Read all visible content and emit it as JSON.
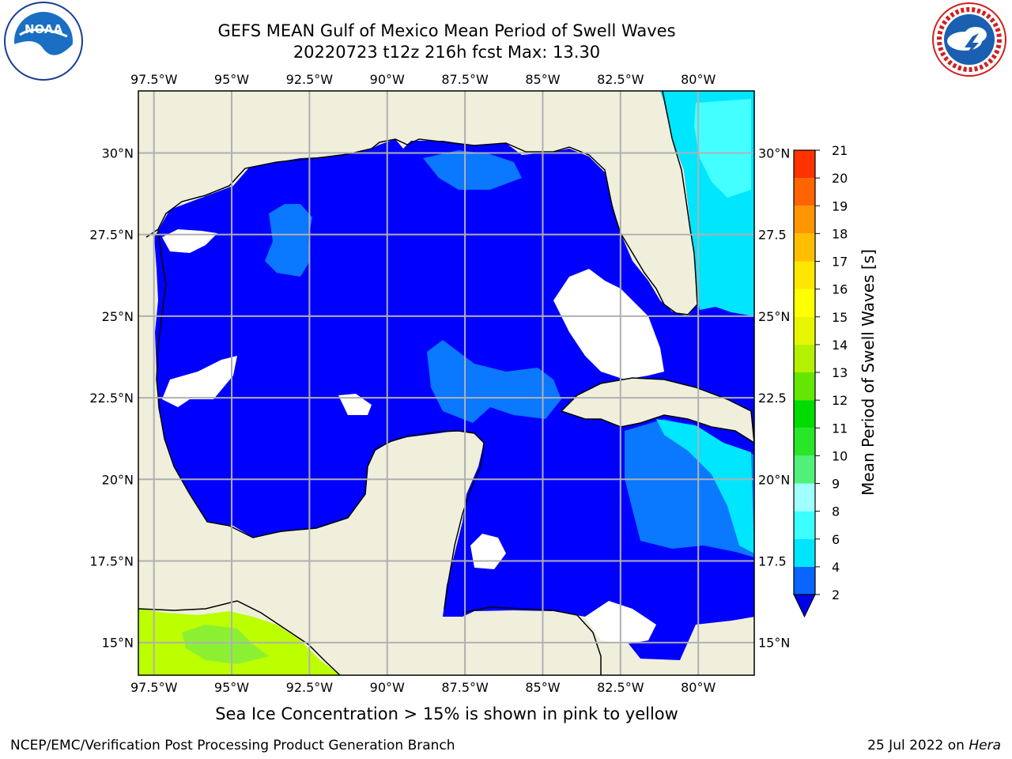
{
  "title": {
    "line1": "GEFS MEAN Gulf of Mexico Mean Period of Swell Waves",
    "line2": "20220723 t12z 216h fcst   Max: 13.30"
  },
  "logos": {
    "left": {
      "name": "noaa-logo",
      "text": "NOAA",
      "ring_text": "NATIONAL OCEANIC AND ATMOSPHERIC ADMINISTRATION · U.S. DEPARTMENT OF COMMERCE"
    },
    "right": {
      "name": "nws-logo",
      "ring_text": "NATIONAL WEATHER SERVICE"
    }
  },
  "map": {
    "lon_labels": [
      "97.5°W",
      "95°W",
      "92.5°W",
      "90°W",
      "87.5°W",
      "85°W",
      "82.5°W",
      "80°W"
    ],
    "lon_values": [
      -97.5,
      -95,
      -92.5,
      -90,
      -87.5,
      -85,
      -82.5,
      -80
    ],
    "lat_labels_left": [
      "30°N",
      "27.5°N",
      "25°N",
      "22.5°N",
      "20°N",
      "17.5°N",
      "15°N"
    ],
    "lat_labels_right": [
      "30°N",
      "27.5",
      "25°N",
      "22.5",
      "20°N",
      "17.5",
      "15°N"
    ],
    "lat_values": [
      30,
      27.5,
      25,
      22.5,
      20,
      17.5,
      15
    ],
    "extent": {
      "lon_min": -98,
      "lon_max": -78.2,
      "lat_min": 14,
      "lat_max": 31.9
    },
    "colors": {
      "land": "#efefdc",
      "water_2_4": "#0000ff",
      "water_4_6": "#0a78ff",
      "water_6_8": "#00e6ff",
      "water_8_9": "#44ffff",
      "ice_region": "#bbff00",
      "grid": "#b0b0b0"
    }
  },
  "colorbar": {
    "label": "Mean Period of Swell Waves [s]",
    "ticks": [
      "2",
      "4",
      "6",
      "8",
      "9",
      "10",
      "11",
      "12",
      "13",
      "14",
      "15",
      "16",
      "17",
      "18",
      "19",
      "20",
      "21"
    ],
    "colors": [
      "#0a64ff",
      "#00e5ff",
      "#3cffff",
      "#a0ffff",
      "#50f07a",
      "#28e628",
      "#00dc00",
      "#64e600",
      "#b4f000",
      "#e6f500",
      "#ffff00",
      "#ffe600",
      "#ffbf00",
      "#ff9600",
      "#ff6400",
      "#ff3200",
      "#ff0000"
    ],
    "extend_color": "#0000e6"
  },
  "footer": {
    "note": "Sea Ice Concentration > 15% is shown in pink to yellow",
    "left": "NCEP/EMC/Verification Post Processing Product Generation Branch",
    "right_date": "25 Jul 2022 on ",
    "right_host": "Hera"
  }
}
